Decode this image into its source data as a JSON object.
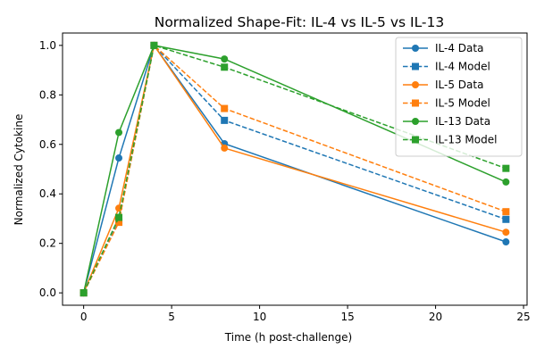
{
  "chart_data": {
    "type": "line",
    "title": "Normalized Shape-Fit: IL-4 vs IL-5 vs IL-13",
    "xlabel": "Time (h post-challenge)",
    "ylabel": "Normalized Cytokine",
    "xlim": [
      -1.2,
      25.2
    ],
    "ylim": [
      -0.05,
      1.05
    ],
    "xticks": [
      0,
      5,
      10,
      15,
      20,
      25
    ],
    "yticks": [
      0.0,
      0.2,
      0.4,
      0.6,
      0.8,
      1.0
    ],
    "grid": false,
    "legend_position": "top-right",
    "x": [
      0,
      2,
      4,
      8,
      24
    ],
    "series": [
      {
        "name": "IL-4 Data",
        "color": "#1f77b4",
        "style": "solid",
        "marker": "circle",
        "values": [
          0.0,
          0.545,
          1.0,
          0.603,
          0.206
        ]
      },
      {
        "name": "IL-4 Model",
        "color": "#1f77b4",
        "style": "dashed",
        "marker": "square",
        "values": [
          0.0,
          0.29,
          1.0,
          0.697,
          0.297
        ]
      },
      {
        "name": "IL-5 Data",
        "color": "#ff7f0e",
        "style": "solid",
        "marker": "circle",
        "values": [
          0.0,
          0.342,
          1.0,
          0.585,
          0.245
        ]
      },
      {
        "name": "IL-5 Model",
        "color": "#ff7f0e",
        "style": "dashed",
        "marker": "square",
        "values": [
          0.0,
          0.285,
          1.0,
          0.745,
          0.328
        ]
      },
      {
        "name": "IL-13 Data",
        "color": "#2ca02c",
        "style": "solid",
        "marker": "circle",
        "values": [
          0.0,
          0.648,
          1.0,
          0.945,
          0.448
        ]
      },
      {
        "name": "IL-13 Model",
        "color": "#2ca02c",
        "style": "dashed",
        "marker": "square",
        "values": [
          0.0,
          0.305,
          1.0,
          0.912,
          0.503
        ]
      }
    ]
  }
}
